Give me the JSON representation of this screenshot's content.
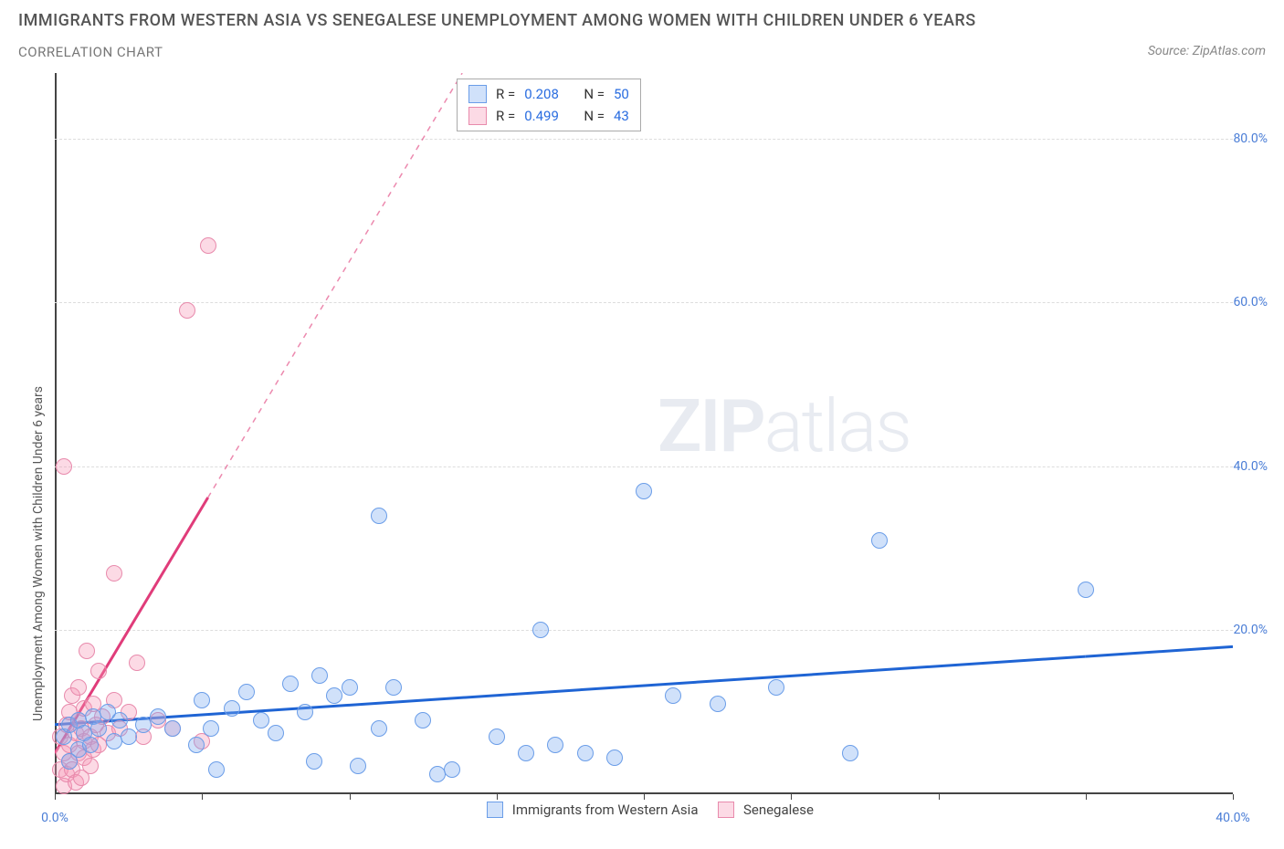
{
  "title": "IMMIGRANTS FROM WESTERN ASIA VS SENEGALESE UNEMPLOYMENT AMONG WOMEN WITH CHILDREN UNDER 6 YEARS",
  "subtitle": "CORRELATION CHART",
  "source": "Source: ZipAtlas.com",
  "y_label": "Unemployment Among Women with Children Under 6 years",
  "watermark_zip": "ZIP",
  "watermark_atlas": "atlas",
  "chart": {
    "type": "scatter",
    "xlim": [
      0,
      40
    ],
    "ylim": [
      0,
      88
    ],
    "x_ticks": [
      0,
      5,
      10,
      15,
      20,
      25,
      30,
      35,
      40
    ],
    "y_ticks": [
      20,
      40,
      60,
      80
    ],
    "x_tick_labels": {
      "0": "0.0%",
      "40": "40.0%"
    },
    "y_tick_labels": {
      "20": "20.0%",
      "40": "40.0%",
      "60": "60.0%",
      "80": "80.0%"
    },
    "grid_color": "#dddddd",
    "background_color": "#ffffff",
    "axis_color": "#444444",
    "point_radius": 9,
    "series": [
      {
        "name": "Immigrants from Western Asia",
        "fill": "rgba(120,170,240,0.35)",
        "stroke": "#6a9de8",
        "line_color": "#1f64d4",
        "line_width": 3,
        "trend": {
          "y_at_x0": 8.5,
          "y_at_xmax": 18.0
        },
        "R": "0.208",
        "N": "50",
        "points": [
          [
            0.3,
            8.0
          ],
          [
            0.5,
            9.5
          ],
          [
            0.5,
            5.0
          ],
          [
            0.8,
            10.0
          ],
          [
            0.8,
            6.5
          ],
          [
            1.0,
            8.5
          ],
          [
            1.2,
            7.0
          ],
          [
            1.3,
            10.5
          ],
          [
            1.5,
            9.0
          ],
          [
            1.8,
            11.0
          ],
          [
            2.0,
            7.5
          ],
          [
            2.2,
            10.0
          ],
          [
            2.5,
            8.0
          ],
          [
            3.0,
            9.5
          ],
          [
            3.5,
            10.5
          ],
          [
            4.0,
            9.0
          ],
          [
            4.8,
            7.0
          ],
          [
            5.0,
            12.5
          ],
          [
            5.3,
            9.0
          ],
          [
            5.5,
            4.0
          ],
          [
            6.0,
            11.5
          ],
          [
            6.5,
            13.5
          ],
          [
            7.0,
            10.0
          ],
          [
            7.5,
            8.5
          ],
          [
            8.0,
            14.5
          ],
          [
            8.5,
            11.0
          ],
          [
            8.8,
            5.0
          ],
          [
            9.0,
            15.5
          ],
          [
            9.5,
            13.0
          ],
          [
            10.0,
            14.0
          ],
          [
            10.3,
            4.5
          ],
          [
            11.0,
            9.0
          ],
          [
            11.5,
            14.0
          ],
          [
            11.0,
            35.0
          ],
          [
            12.5,
            10.0
          ],
          [
            13.0,
            3.5
          ],
          [
            13.5,
            4.0
          ],
          [
            15.0,
            8.0
          ],
          [
            16.0,
            6.0
          ],
          [
            16.5,
            21.0
          ],
          [
            17.0,
            7.0
          ],
          [
            18.0,
            6.0
          ],
          [
            19.0,
            5.5
          ],
          [
            20.0,
            38.0
          ],
          [
            21.0,
            13.0
          ],
          [
            22.5,
            12.0
          ],
          [
            24.5,
            14.0
          ],
          [
            27.0,
            6.0
          ],
          [
            28.0,
            32.0
          ],
          [
            35.0,
            26.0
          ]
        ]
      },
      {
        "name": "Senegalese",
        "fill": "rgba(245,150,180,0.35)",
        "stroke": "#e88aac",
        "line_color": "#e03c7a",
        "line_width": 3,
        "trend": {
          "y_at_x0": 5.0,
          "y_at_xmax": 245.0
        },
        "R": "0.499",
        "N": "43",
        "points": [
          [
            0.2,
            4.0
          ],
          [
            0.2,
            8.0
          ],
          [
            0.3,
            2.0
          ],
          [
            0.3,
            6.0
          ],
          [
            0.4,
            9.5
          ],
          [
            0.4,
            3.5
          ],
          [
            0.5,
            7.0
          ],
          [
            0.5,
            11.0
          ],
          [
            0.5,
            5.0
          ],
          [
            0.6,
            13.0
          ],
          [
            0.6,
            4.0
          ],
          [
            0.7,
            8.5
          ],
          [
            0.7,
            2.5
          ],
          [
            0.8,
            10.0
          ],
          [
            0.8,
            6.0
          ],
          [
            0.8,
            14.0
          ],
          [
            0.9,
            3.0
          ],
          [
            0.9,
            9.0
          ],
          [
            1.0,
            7.5
          ],
          [
            1.0,
            11.5
          ],
          [
            1.0,
            5.5
          ],
          [
            1.1,
            18.5
          ],
          [
            1.2,
            8.0
          ],
          [
            1.2,
            4.5
          ],
          [
            1.3,
            12.0
          ],
          [
            1.3,
            6.5
          ],
          [
            1.4,
            9.5
          ],
          [
            1.5,
            16.0
          ],
          [
            1.5,
            7.0
          ],
          [
            1.6,
            10.5
          ],
          [
            1.8,
            8.5
          ],
          [
            0.3,
            41.0
          ],
          [
            2.0,
            12.5
          ],
          [
            2.0,
            28.0
          ],
          [
            2.2,
            9.0
          ],
          [
            2.5,
            11.0
          ],
          [
            2.8,
            17.0
          ],
          [
            3.0,
            8.0
          ],
          [
            3.5,
            10.0
          ],
          [
            4.0,
            9.0
          ],
          [
            4.5,
            60.0
          ],
          [
            5.2,
            68.0
          ],
          [
            5.0,
            7.5
          ]
        ]
      }
    ]
  },
  "legend_top": {
    "r_label": "R =",
    "n_label": "N ="
  },
  "legend_bottom": {
    "series1_label": "Immigrants from Western Asia",
    "series2_label": "Senegalese"
  }
}
